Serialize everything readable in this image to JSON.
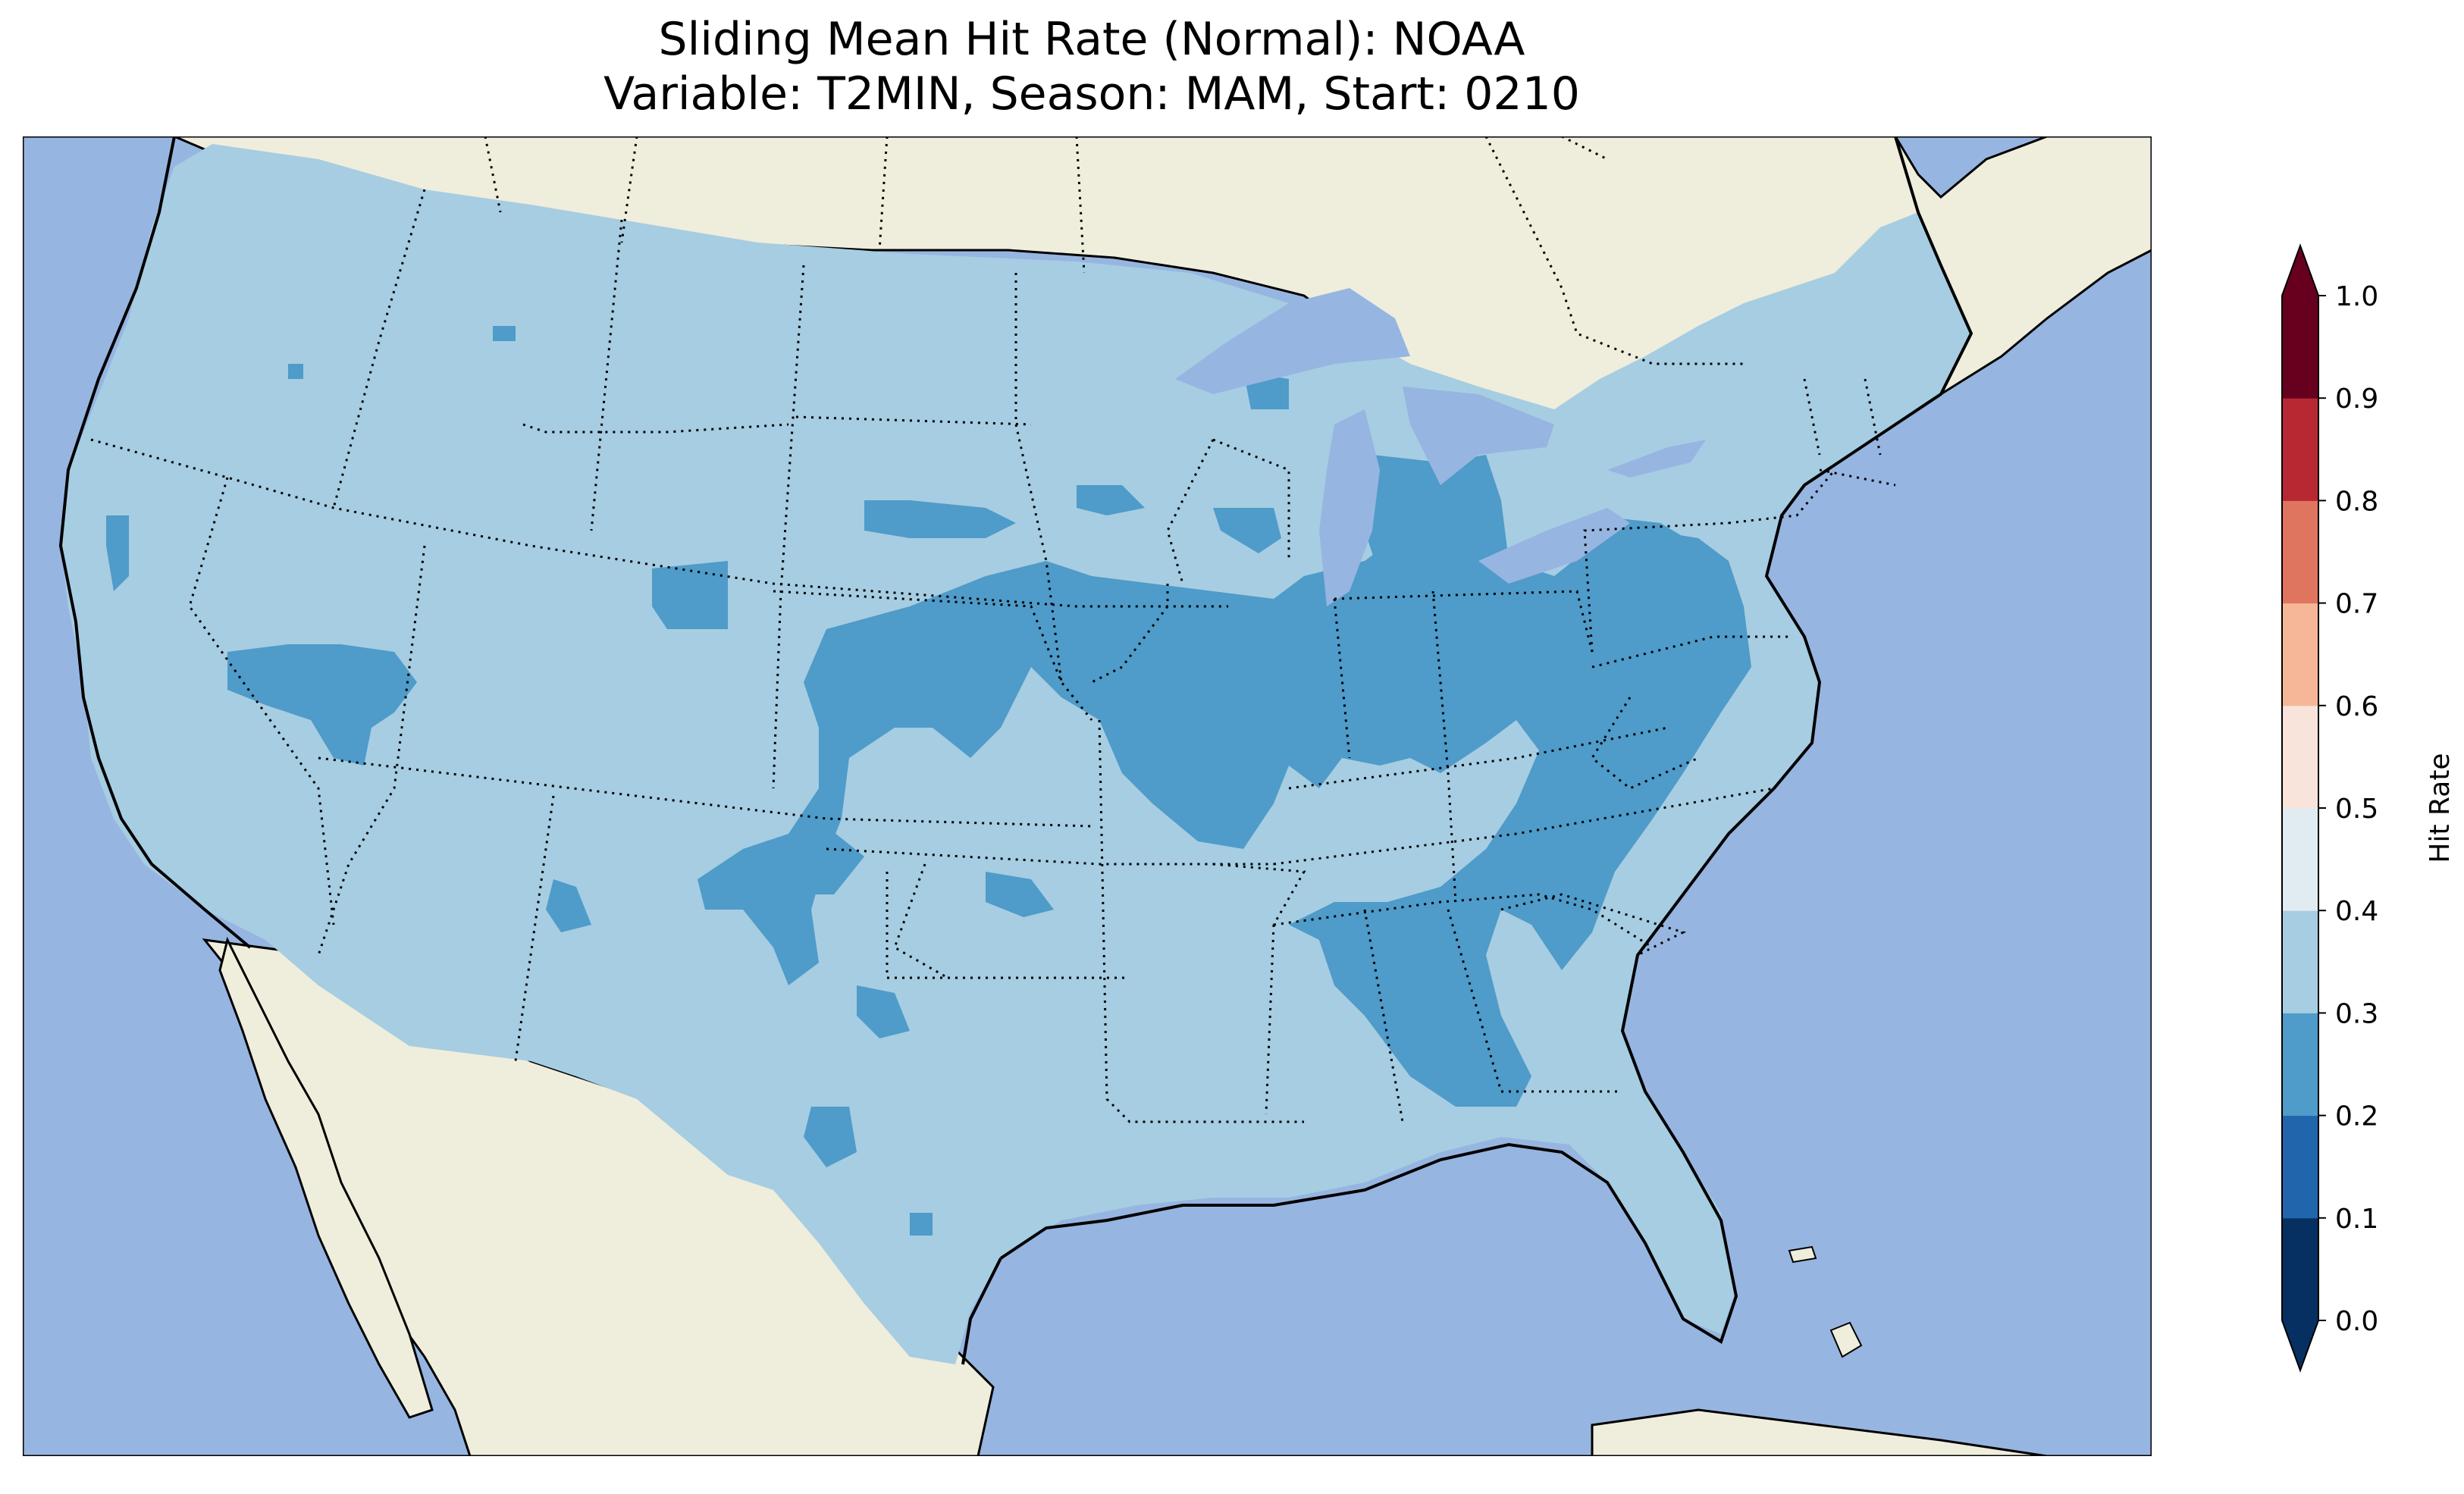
{
  "title": {
    "line1": "Sliding Mean Hit Rate (Normal): NOAA",
    "line2": "Variable: T2MIN, Season: MAM, Start: 0210"
  },
  "map": {
    "region": "Contiguous United States",
    "ocean_color": "#97b5e1",
    "land_color": "#efeddc",
    "border_style": "dotted state boundaries, solid coastline"
  },
  "colorbar": {
    "label": "Hit Rate",
    "ticks": [
      "0.0",
      "0.1",
      "0.2",
      "0.3",
      "0.4",
      "0.5",
      "0.6",
      "0.7",
      "0.8",
      "0.9",
      "1.0"
    ],
    "bins": [
      {
        "range": [
          0.0,
          0.1
        ],
        "color": "#053061"
      },
      {
        "range": [
          0.1,
          0.2
        ],
        "color": "#2166ac"
      },
      {
        "range": [
          0.2,
          0.3
        ],
        "color": "#4f9bc9"
      },
      {
        "range": [
          0.3,
          0.4
        ],
        "color": "#a6cde2"
      },
      {
        "range": [
          0.4,
          0.5
        ],
        "color": "#e1ebf2"
      },
      {
        "range": [
          0.5,
          0.6
        ],
        "color": "#f8e4da"
      },
      {
        "range": [
          0.6,
          0.7
        ],
        "color": "#f6b798"
      },
      {
        "range": [
          0.7,
          0.8
        ],
        "color": "#df755e"
      },
      {
        "range": [
          0.8,
          0.9
        ],
        "color": "#b82833"
      },
      {
        "range": [
          0.9,
          1.0
        ],
        "color": "#67001f"
      }
    ],
    "extend": "both"
  }
}
